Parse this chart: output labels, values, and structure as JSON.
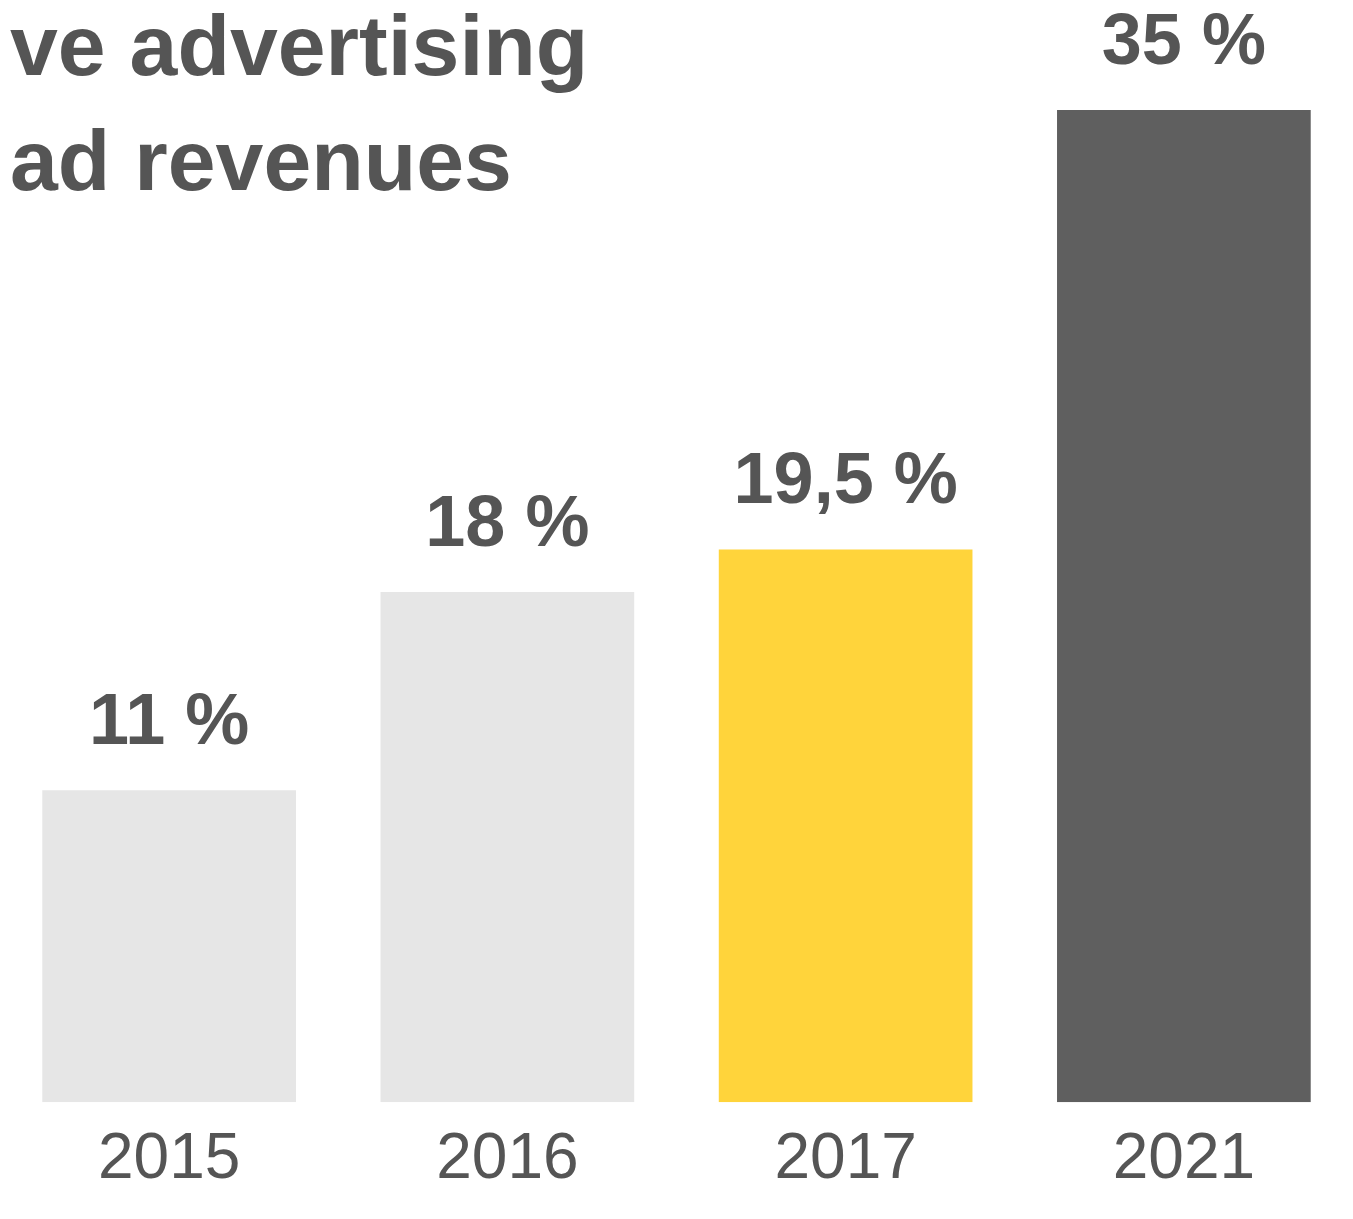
{
  "chart_data": {
    "type": "bar",
    "title": "ve advertising\nad revenues",
    "categories": [
      "2015",
      "2016",
      "2017",
      "2021"
    ],
    "values": [
      11,
      18,
      19.5,
      35
    ],
    "colors": [
      "#e6e6e6",
      "#e6e6e6",
      "#ffd43b",
      "#5f5f5f"
    ],
    "value_labels": [
      "11 %",
      "18 %",
      "19,5 %",
      "35 %"
    ],
    "grid": false,
    "legend": false
  }
}
